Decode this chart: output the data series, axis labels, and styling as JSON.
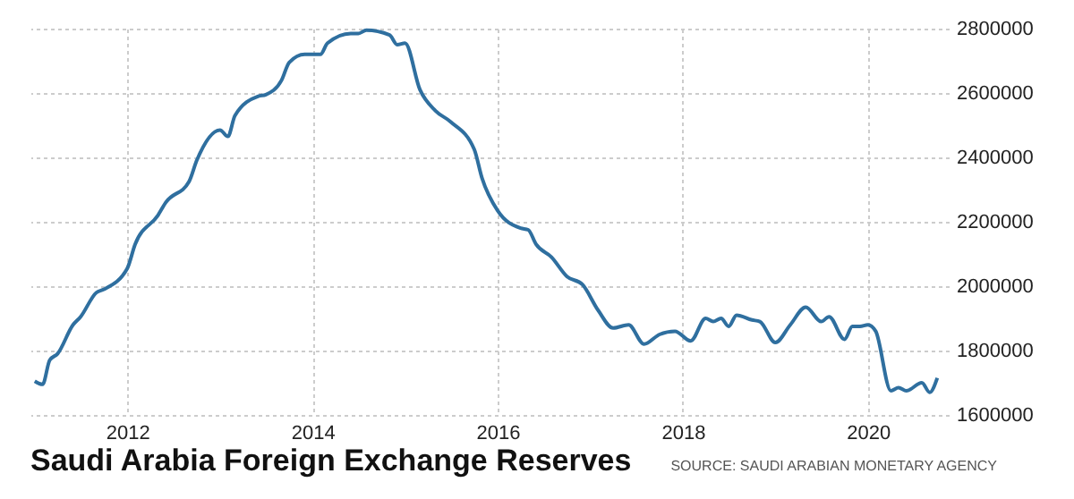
{
  "chart_data": {
    "type": "line",
    "title": "Saudi Arabia Foreign Exchange Reserves",
    "annotations": [
      "SOURCE: SAUDI ARABIAN MONETARY AGENCY"
    ],
    "x": [
      "2011-01",
      "2011-02",
      "2011-03",
      "2011-04",
      "2011-06",
      "2011-07",
      "2011-09",
      "2011-10",
      "2012-01",
      "2012-02",
      "2012-05",
      "2012-06",
      "2012-09",
      "2012-10",
      "2013-01",
      "2013-02",
      "2013-03",
      "2013-06",
      "2013-07",
      "2013-09",
      "2013-10",
      "2013-12",
      "2014-02",
      "2014-03",
      "2014-06",
      "2014-07",
      "2014-08",
      "2014-11",
      "2014-12",
      "2015-01",
      "2015-03",
      "2015-05",
      "2015-07",
      "2015-10",
      "2015-11",
      "2016-01",
      "2016-04",
      "2016-05",
      "2016-06",
      "2016-08",
      "2016-10",
      "2016-12",
      "2017-02",
      "2017-04",
      "2017-06",
      "2017-08",
      "2017-10",
      "2017-12",
      "2018-02",
      "2018-04",
      "2018-05",
      "2018-06",
      "2018-07",
      "2018-08",
      "2018-10",
      "2018-11",
      "2019-01",
      "2019-03",
      "2019-05",
      "2019-07",
      "2019-08",
      "2019-10",
      "2019-11",
      "2019-12",
      "2020-01",
      "2020-02",
      "2020-04",
      "2020-05",
      "2020-06",
      "2020-08",
      "2020-09",
      "2020-10"
    ],
    "series": [
      {
        "color": "#2f6f9f",
        "values": [
          1705000,
          1695000,
          1770000,
          1790000,
          1880000,
          1905000,
          1980000,
          1990000,
          2055000,
          2130000,
          2220000,
          2260000,
          2325000,
          2390000,
          2485000,
          2465000,
          2530000,
          2590000,
          2595000,
          2640000,
          2695000,
          2720000,
          2720000,
          2755000,
          2785000,
          2785000,
          2795000,
          2780000,
          2750000,
          2755000,
          2610000,
          2545000,
          2510000,
          2425000,
          2335000,
          2235000,
          2180000,
          2175000,
          2130000,
          2090000,
          2030000,
          2005000,
          1925000,
          1870000,
          1880000,
          1820000,
          1850000,
          1860000,
          1830000,
          1900000,
          1890000,
          1900000,
          1875000,
          1910000,
          1895000,
          1890000,
          1825000,
          1880000,
          1935000,
          1890000,
          1905000,
          1835000,
          1875000,
          1875000,
          1880000,
          1860000,
          1675000,
          1685000,
          1675000,
          1700000,
          1670000,
          1715000
        ]
      }
    ],
    "xlim": [
      "2010-12-15",
      "2020-11-15"
    ],
    "xticks": [
      "2012",
      "2014",
      "2016",
      "2018",
      "2020"
    ],
    "ylim": [
      1600000,
      2800000
    ],
    "yticks": [
      1600000,
      1800000,
      2000000,
      2200000,
      2400000,
      2600000,
      2800000
    ],
    "grid": true,
    "line_style": "solid"
  }
}
